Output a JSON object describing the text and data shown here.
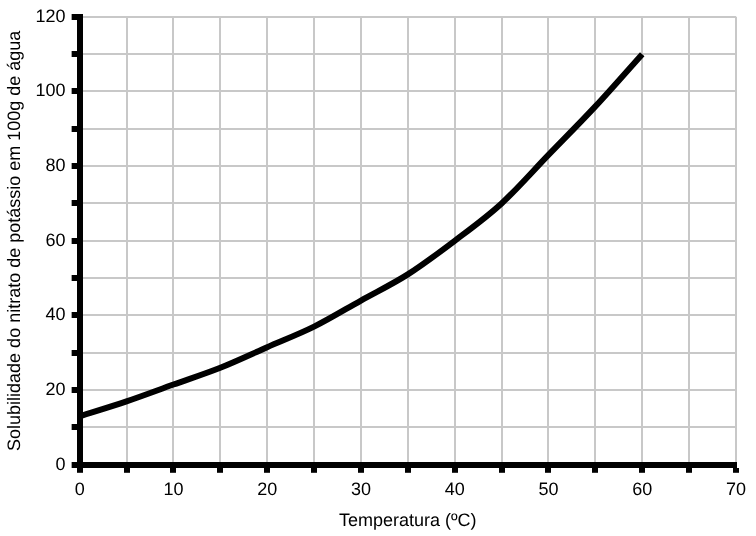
{
  "chart_data": {
    "type": "line",
    "xlabel": "Temperatura (ºC)",
    "ylabel": "Solubilidade do nitrato de potássio em 100g de água",
    "x": [
      0,
      5,
      10,
      15,
      20,
      25,
      30,
      35,
      40,
      45,
      50,
      55,
      60
    ],
    "series": [
      {
        "color": "#000000",
        "values": [
          13,
          17,
          21.5,
          26,
          31.5,
          37,
          44,
          51,
          60,
          70,
          83,
          96,
          110
        ]
      }
    ],
    "xlim": [
      0,
      70
    ],
    "ylim": [
      0,
      120
    ],
    "xticks": [
      0,
      {
        "value": 5,
        "label": null
      },
      10,
      {
        "value": 15,
        "label": null
      },
      20,
      {
        "value": 25,
        "label": null
      },
      30,
      {
        "value": 35,
        "label": null
      },
      40,
      {
        "value": 45,
        "label": null
      },
      50,
      {
        "value": 55,
        "label": null
      },
      60,
      {
        "value": 65,
        "label": null
      },
      70
    ],
    "yticks": [
      0,
      {
        "value": 10,
        "label": null
      },
      20,
      {
        "value": 30,
        "label": null
      },
      40,
      {
        "value": 50,
        "label": null
      },
      60,
      {
        "value": 70,
        "label": null
      },
      80,
      {
        "value": 90,
        "label": null
      },
      100,
      {
        "value": 110,
        "label": null
      },
      120
    ],
    "grid": true,
    "legend": false,
    "marker": "none",
    "line_style": "solid"
  }
}
